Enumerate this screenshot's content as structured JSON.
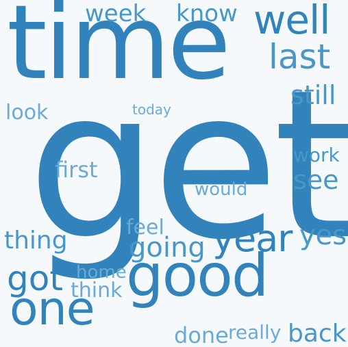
{
  "background": "#f5f9fc",
  "colors": {
    "dark": "#3283bc",
    "mid": "#4897c9",
    "light": "#6aaad6"
  },
  "words": {
    "get": "get",
    "time": "time",
    "good": "good",
    "one": "one",
    "year": "year",
    "well": "well",
    "last": "last",
    "week": "week",
    "know": "know",
    "still": "still",
    "see": "see",
    "work": "work",
    "yes": "yes",
    "going": "going",
    "got": "got",
    "thing": "thing",
    "back": "back",
    "done": "done",
    "really": "really",
    "first": "first",
    "would": "would",
    "feel": "feel",
    "think": "think",
    "home": "home",
    "look": "look",
    "today": "today"
  }
}
